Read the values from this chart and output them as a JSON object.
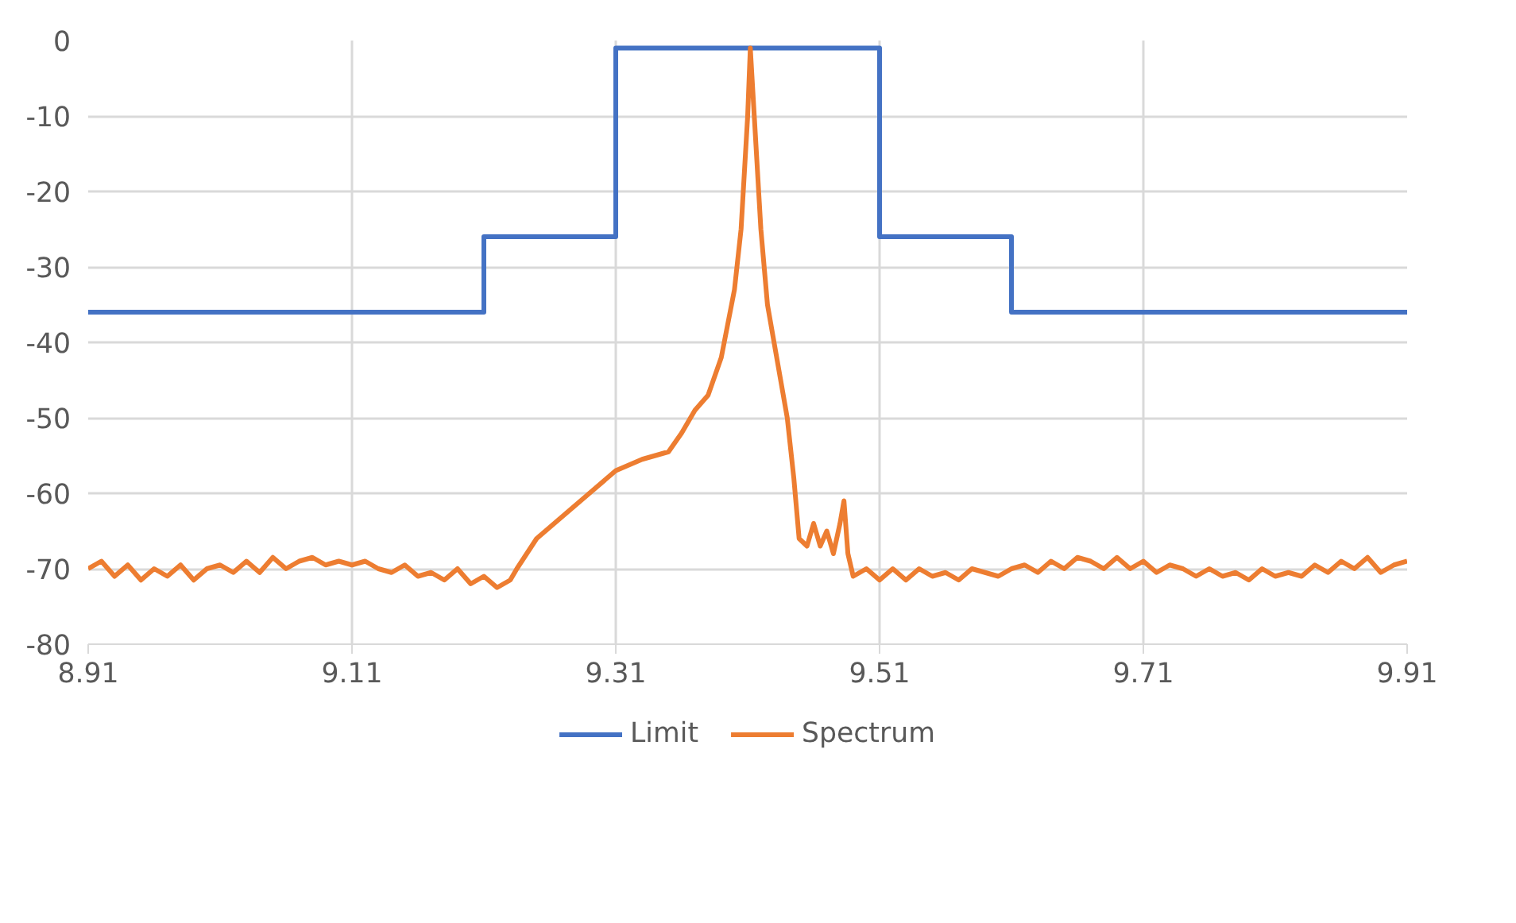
{
  "chart_data": {
    "type": "line",
    "xlim": [
      8.91,
      9.91
    ],
    "ylim": [
      -80,
      0
    ],
    "xticks": [
      8.91,
      9.11,
      9.31,
      9.51,
      9.71,
      9.91
    ],
    "yticks": [
      -80,
      -70,
      -60,
      -50,
      -40,
      -30,
      -20,
      -10,
      0
    ],
    "grid": true,
    "legend": "bottom",
    "marker": "none",
    "line_style": "solid",
    "series": [
      {
        "name": "Limit",
        "color": "#4472c4",
        "x": [
          8.91,
          9.21,
          9.21,
          9.31,
          9.31,
          9.51,
          9.51,
          9.61,
          9.61,
          9.91
        ],
        "values": [
          -36,
          -36,
          -26,
          -26,
          -1,
          -1,
          -26,
          -26,
          -36,
          -36
        ]
      },
      {
        "name": "Spectrum",
        "color": "#ed7d31",
        "x": [
          8.91,
          8.92,
          8.93,
          8.94,
          8.95,
          8.96,
          8.97,
          8.98,
          8.99,
          9.0,
          9.01,
          9.02,
          9.03,
          9.04,
          9.05,
          9.06,
          9.07,
          9.08,
          9.09,
          9.1,
          9.11,
          9.12,
          9.13,
          9.14,
          9.15,
          9.16,
          9.17,
          9.18,
          9.19,
          9.2,
          9.21,
          9.22,
          9.23,
          9.235,
          9.25,
          9.27,
          9.29,
          9.31,
          9.33,
          9.35,
          9.36,
          9.37,
          9.38,
          9.39,
          9.4,
          9.405,
          9.41,
          9.412,
          9.415,
          9.42,
          9.425,
          9.435,
          9.44,
          9.445,
          9.449,
          9.455,
          9.46,
          9.465,
          9.47,
          9.475,
          9.48,
          9.483,
          9.486,
          9.49,
          9.5,
          9.51,
          9.52,
          9.53,
          9.54,
          9.55,
          9.56,
          9.57,
          9.58,
          9.59,
          9.6,
          9.61,
          9.62,
          9.63,
          9.64,
          9.65,
          9.66,
          9.67,
          9.68,
          9.69,
          9.7,
          9.71,
          9.72,
          9.73,
          9.74,
          9.75,
          9.76,
          9.77,
          9.78,
          9.79,
          9.8,
          9.81,
          9.82,
          9.83,
          9.84,
          9.85,
          9.86,
          9.87,
          9.88,
          9.89,
          9.9,
          9.91
        ],
        "values": [
          -70,
          -69,
          -71,
          -69.5,
          -71.5,
          -70,
          -71,
          -69.5,
          -71.5,
          -70,
          -69.5,
          -70.5,
          -69,
          -70.5,
          -68.5,
          -70,
          -69,
          -68.5,
          -69.5,
          -69,
          -69.5,
          -69,
          -70,
          -70.5,
          -69.5,
          -71,
          -70.5,
          -71.5,
          -70,
          -72,
          -71,
          -72.5,
          -71.5,
          -70,
          -66,
          -63,
          -60,
          -57,
          -55.5,
          -54.5,
          -52,
          -49,
          -47,
          -42,
          -33,
          -25,
          -10,
          -1,
          -10,
          -25,
          -35,
          -45,
          -50,
          -58,
          -66,
          -67,
          -64,
          -67,
          -65,
          -68,
          -64,
          -61,
          -68,
          -71,
          -70,
          -71.5,
          -70,
          -71.5,
          -70,
          -71,
          -70.5,
          -71.5,
          -70,
          -70.5,
          -71,
          -70,
          -69.5,
          -70.5,
          -69,
          -70,
          -68.5,
          -69,
          -70,
          -68.5,
          -70,
          -69,
          -70.5,
          -69.5,
          -70,
          -71,
          -70,
          -71,
          -70.5,
          -71.5,
          -70,
          -71,
          -70.5,
          -71,
          -69.5,
          -70.5,
          -69,
          -70,
          -68.5,
          -70.5,
          -69.5,
          -69
        ]
      }
    ]
  }
}
